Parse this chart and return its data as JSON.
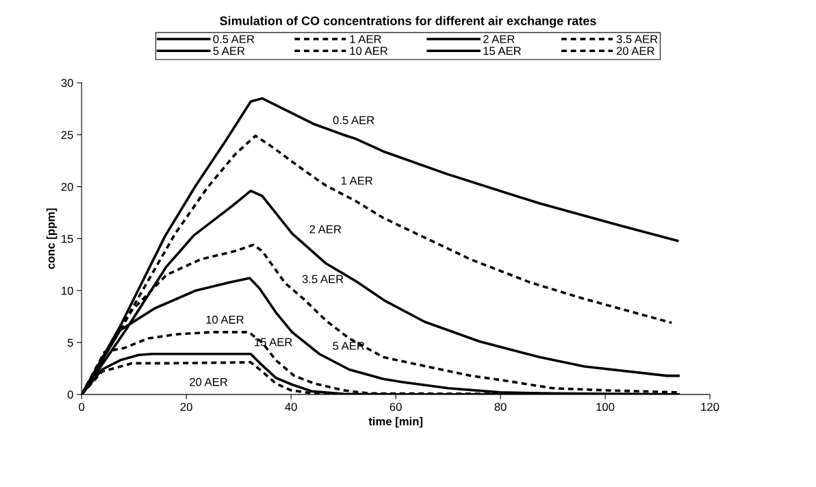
{
  "chart_data": {
    "type": "line",
    "title": "Simulation of CO concentrations for different air exchange rates",
    "xlabel": "time [min]",
    "ylabel": "conc [ppm]",
    "xlim": [
      0,
      120
    ],
    "xticks": [
      0,
      20,
      40,
      60,
      80,
      100,
      120
    ],
    "ylim": [
      0,
      30
    ],
    "yticks": [
      0,
      5,
      10,
      15,
      20,
      25,
      30
    ],
    "grid": false,
    "legend": "top",
    "marker": "none",
    "series": [
      {
        "name": "0.5 AER",
        "color": "#000000",
        "line_style": "solid",
        "x": [
          0,
          7.4,
          16,
          21.8,
          27.5,
          32.3,
          34.5,
          44.5,
          50,
          52.4,
          57.6,
          69.9,
          87.4,
          102.6,
          113.8
        ],
        "values": [
          0,
          6.6,
          15.3,
          20.1,
          24.4,
          28.2,
          28.5,
          26,
          25,
          24.6,
          23.4,
          21.2,
          18.4,
          16.3,
          14.8
        ]
      },
      {
        "name": "1 AER",
        "color": "#000000",
        "line_style": "dashed",
        "x": [
          0,
          7.4,
          17.9,
          24,
          29.3,
          33.2,
          36.2,
          42.4,
          46.7,
          52.4,
          57.6,
          74.3,
          85.6,
          96,
          112.7
        ],
        "values": [
          0,
          6.3,
          15.5,
          19.9,
          23.1,
          24.9,
          23.9,
          21.6,
          20.1,
          18.6,
          17,
          13,
          10.8,
          9.2,
          6.9
        ]
      },
      {
        "name": "2 AER",
        "color": "#000000",
        "line_style": "solid",
        "x": [
          0,
          8.7,
          16.2,
          21.4,
          28.4,
          32.3,
          34.5,
          40.2,
          46.7,
          52.4,
          58,
          65.5,
          76,
          87.4,
          96,
          111.8,
          114
        ],
        "values": [
          0,
          6.4,
          12.3,
          15.3,
          18,
          19.6,
          19.1,
          15.5,
          12.6,
          10.9,
          9,
          7,
          5.1,
          3.6,
          2.7,
          1.8,
          1.8
        ]
      },
      {
        "name": "3.5 AER",
        "color": "#000000",
        "line_style": "dashed",
        "x": [
          0,
          9.6,
          16.2,
          22.7,
          29.3,
          32.8,
          34.5,
          36.2,
          38.9,
          42.4,
          46.7,
          51.1,
          57.6,
          61.2,
          74.3,
          80,
          90,
          100,
          114
        ],
        "values": [
          0,
          8.1,
          11.5,
          13,
          13.8,
          14.4,
          13.8,
          12.6,
          10.7,
          9.2,
          7.1,
          5.4,
          3.6,
          3.2,
          1.8,
          1.4,
          0.6,
          0.4,
          0.2
        ]
      },
      {
        "name": "5 AER",
        "color": "#000000",
        "line_style": "solid",
        "x": [
          0,
          7.4,
          14,
          21.8,
          28.4,
          32.1,
          34,
          37.1,
          40.2,
          45.4,
          51.1,
          57.6,
          61.2,
          70,
          80,
          90,
          114
        ],
        "values": [
          0,
          6.2,
          8.3,
          10,
          10.8,
          11.2,
          10.2,
          7.9,
          6,
          3.9,
          2.4,
          1.5,
          1.2,
          0.6,
          0.2,
          0.1,
          0
        ]
      },
      {
        "name": "10 AER",
        "color": "#000000",
        "line_style": "dashed",
        "x": [
          0,
          4.4,
          8.3,
          12.7,
          18.3,
          24.9,
          31.9,
          34.5,
          37.1,
          40.6,
          44.5,
          50,
          55,
          114
        ],
        "values": [
          0,
          4.1,
          4.5,
          5.4,
          5.8,
          6,
          6,
          5,
          3.3,
          1.8,
          1.05,
          0.4,
          0.1,
          0
        ]
      },
      {
        "name": "15 AER",
        "color": "#000000",
        "line_style": "solid",
        "x": [
          0,
          3.9,
          7.4,
          10.9,
          13.5,
          32.3,
          34.5,
          37.1,
          40.2,
          44,
          50,
          60,
          114
        ],
        "values": [
          0,
          2.4,
          3.3,
          3.8,
          3.9,
          3.9,
          2.8,
          1.6,
          0.95,
          0.3,
          0.05,
          0,
          0
        ]
      },
      {
        "name": "20 AER",
        "color": "#000000",
        "line_style": "dashed",
        "x": [
          0,
          3.9,
          9.6,
          16.2,
          32.3,
          34.5,
          37.1,
          40,
          45,
          50,
          114
        ],
        "values": [
          0,
          2.2,
          3,
          3,
          3.1,
          2.2,
          1.05,
          0.4,
          0.05,
          0,
          0
        ]
      }
    ],
    "annotations": [
      "0.5 AER",
      "1 AER",
      "2 AER",
      "3.5 AER",
      "5 AER",
      "10 AER",
      "15 AER",
      "20 AER"
    ]
  }
}
